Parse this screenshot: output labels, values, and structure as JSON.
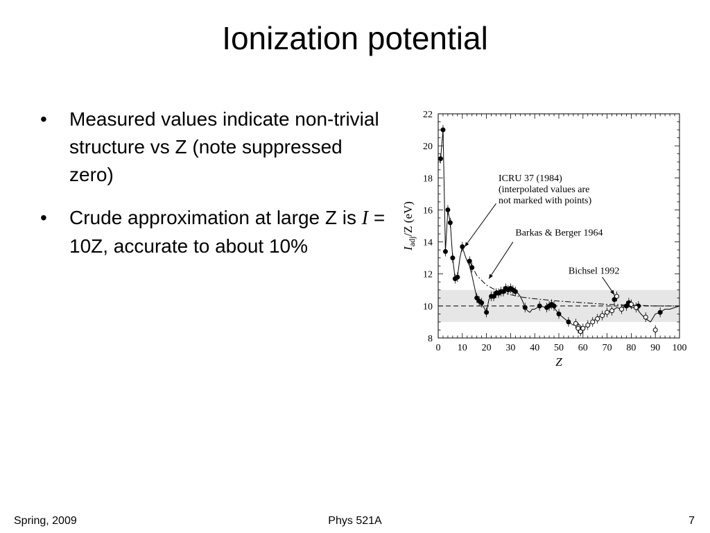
{
  "slide": {
    "title": "Ionization potential",
    "bullets": [
      {
        "text": "Measured values indicate non-trivial structure vs Z (note suppressed zero)"
      },
      {
        "before": "Crude approximation at large Z is ",
        "symbol": "I",
        "after": " = 10Z, accurate to about 10%"
      }
    ],
    "bullet_glyph": "•"
  },
  "footer": {
    "left": "Spring, 2009",
    "center": "Phys 521A",
    "right": "7"
  },
  "chart_data": {
    "type": "scatter",
    "xlabel": "Z",
    "ylabel_main": "I",
    "ylabel_sub": "adj",
    "ylabel_rest": "/Z (eV)",
    "xlim": [
      0,
      100
    ],
    "ylim": [
      8,
      22
    ],
    "xticks": [
      0,
      10,
      20,
      30,
      40,
      50,
      60,
      70,
      80,
      90,
      100
    ],
    "yticks": [
      8,
      10,
      12,
      14,
      16,
      18,
      20,
      22
    ],
    "band": [
      9,
      11
    ],
    "reference_y": 10,
    "annotations": [
      {
        "lines": [
          "ICRU 37 (1984)",
          "(interpolated values are",
          "not marked with points)"
        ],
        "target_x": 11,
        "target_y": 13.7
      },
      {
        "lines": [
          "Barkas & Berger 1964"
        ],
        "target_x": 21,
        "target_y": 11.7
      },
      {
        "lines": [
          "Bichsel 1992"
        ],
        "target_x": 73,
        "target_y": 10.7
      }
    ],
    "series": [
      {
        "key": "icru",
        "style": "solid",
        "x": [
          1,
          2,
          3,
          4,
          5,
          6,
          7,
          8,
          9,
          10,
          11,
          12,
          13,
          14,
          15,
          16,
          17,
          18,
          19,
          20,
          21,
          22,
          23,
          24,
          25,
          26,
          27,
          28,
          29,
          30,
          31,
          32,
          33,
          34,
          35,
          36,
          37,
          38,
          39,
          40,
          42,
          45,
          47,
          50,
          54,
          56,
          58,
          60,
          62,
          64,
          66,
          68,
          70,
          72,
          74,
          76,
          78,
          80,
          82,
          84,
          86,
          88,
          90,
          92,
          94,
          96,
          100
        ],
        "y": [
          19.2,
          21.0,
          13.4,
          16.0,
          15.2,
          13.0,
          11.7,
          11.8,
          13.0,
          13.7,
          13.2,
          12.8,
          12.5,
          11.9,
          11.2,
          10.5,
          10.3,
          10.1,
          9.9,
          9.6,
          10.4,
          10.6,
          10.6,
          10.8,
          10.8,
          10.9,
          11.0,
          11.1,
          11.0,
          11.1,
          11.0,
          11.0,
          10.8,
          10.6,
          10.3,
          9.9,
          9.7,
          9.6,
          9.8,
          9.8,
          10.0,
          9.9,
          10.1,
          9.5,
          9.0,
          8.8,
          8.9,
          8.6,
          8.8,
          9.0,
          9.3,
          9.4,
          9.6,
          9.7,
          9.9,
          9.8,
          10.1,
          9.9,
          9.9,
          9.5,
          9.2,
          9.0,
          9.5,
          9.6,
          9.8,
          9.8,
          10.0
        ]
      },
      {
        "key": "barkas",
        "style": "dashdot",
        "x": [
          13,
          16,
          20,
          25,
          30,
          35,
          40,
          50,
          60,
          70,
          80,
          90,
          100
        ],
        "y": [
          12.8,
          11.9,
          11.3,
          10.9,
          10.7,
          10.55,
          10.45,
          10.3,
          10.2,
          10.1,
          10.05,
          10.0,
          10.0
        ]
      }
    ],
    "points_filled": {
      "x": [
        1,
        2,
        3,
        4,
        5,
        6,
        7,
        8,
        10,
        13,
        14,
        16,
        17,
        18,
        20,
        22,
        23,
        24,
        25,
        26,
        27,
        28,
        29,
        30,
        31,
        32,
        36,
        42,
        45,
        46,
        47,
        48,
        50,
        54,
        73,
        78,
        79,
        83,
        92
      ],
      "y": [
        19.2,
        21.0,
        13.4,
        16.0,
        15.2,
        13.0,
        11.7,
        11.8,
        13.7,
        12.8,
        12.4,
        10.5,
        10.3,
        10.2,
        9.6,
        10.6,
        10.6,
        10.8,
        10.8,
        10.9,
        10.9,
        11.1,
        11.0,
        11.1,
        11.0,
        10.9,
        9.9,
        10.0,
        9.9,
        10.0,
        10.1,
        10.0,
        9.5,
        9.0,
        10.4,
        10.0,
        10.2,
        10.0,
        9.6
      ]
    },
    "points_open": {
      "x": [
        57,
        58,
        59,
        60,
        62,
        64,
        66,
        68,
        70,
        72,
        74,
        76,
        80,
        82,
        86,
        90
      ],
      "y": [
        8.9,
        8.6,
        8.4,
        8.6,
        8.8,
        9.0,
        9.2,
        9.4,
        9.6,
        9.7,
        10.6,
        9.8,
        10.1,
        9.9,
        9.3,
        8.5
      ]
    }
  }
}
